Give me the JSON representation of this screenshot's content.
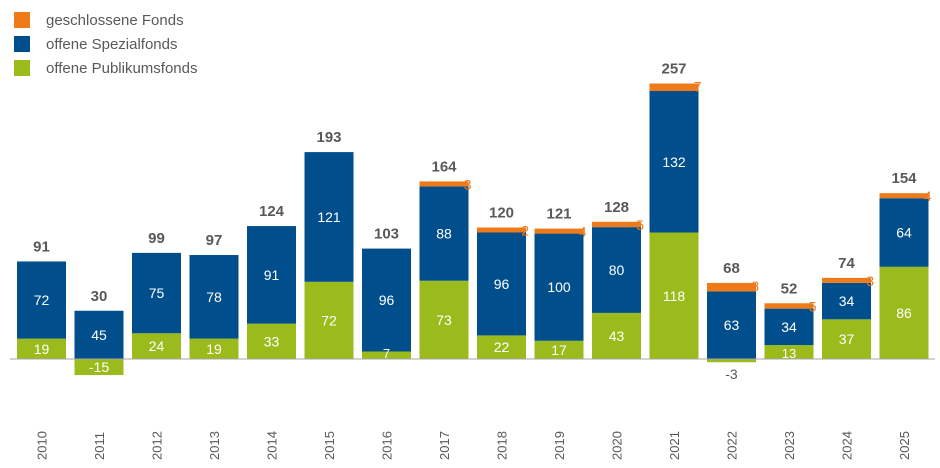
{
  "chart_data": {
    "type": "bar",
    "stacked": true,
    "categories": [
      "2010",
      "2011",
      "2012",
      "2013",
      "2014",
      "2015",
      "2016",
      "2017",
      "2018",
      "2019",
      "2020",
      "2021",
      "2022",
      "2023",
      "2024",
      "2025"
    ],
    "series": [
      {
        "name": "offene Publikumsfonds",
        "color": "#9bbb1c",
        "values": [
          19,
          -15,
          24,
          19,
          33,
          72,
          7,
          73,
          22,
          17,
          43,
          118,
          -3,
          13,
          37,
          86
        ]
      },
      {
        "name": "offene Spezialfonds",
        "color": "#004f8c",
        "values": [
          72,
          45,
          75,
          78,
          91,
          121,
          96,
          88,
          96,
          100,
          80,
          132,
          63,
          34,
          34,
          64
        ]
      },
      {
        "name": "geschlossene Fonds",
        "color": "#ef7a1a",
        "values": [
          0,
          0,
          0,
          0,
          0,
          0,
          0,
          3,
          2,
          4,
          5,
          7,
          8,
          5,
          3,
          4
        ]
      }
    ],
    "totals": [
      91,
      30,
      99,
      97,
      124,
      193,
      103,
      164,
      120,
      121,
      128,
      257,
      68,
      52,
      74,
      154
    ],
    "closed_labels": [
      "",
      "",
      "",
      "",
      "",
      "",
      "",
      "3",
      "2",
      "4",
      "5",
      "7",
      "8",
      "5",
      "3",
      "4"
    ],
    "legend": [
      "geschlossene Fonds",
      "offene Spezialfonds",
      "offene Publikumsfonds"
    ],
    "title": "",
    "xlabel": "",
    "ylabel": "",
    "legend_position": "top-left"
  }
}
